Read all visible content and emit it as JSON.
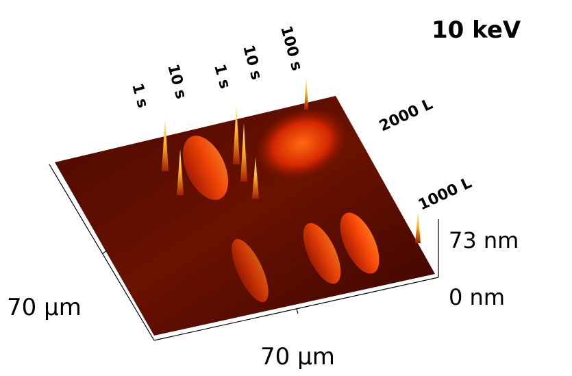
{
  "title": "10 keV",
  "time_labels": [
    "1 s",
    "10 s",
    "1 s",
    "10 s",
    "100 s"
  ],
  "dose_labels": [
    "2000 L",
    "1000 L"
  ],
  "height_scale": {
    "max": "73 nm",
    "min": "0 nm"
  },
  "axes": {
    "y_extent": "70 µm",
    "x_extent": "70 µm"
  }
}
